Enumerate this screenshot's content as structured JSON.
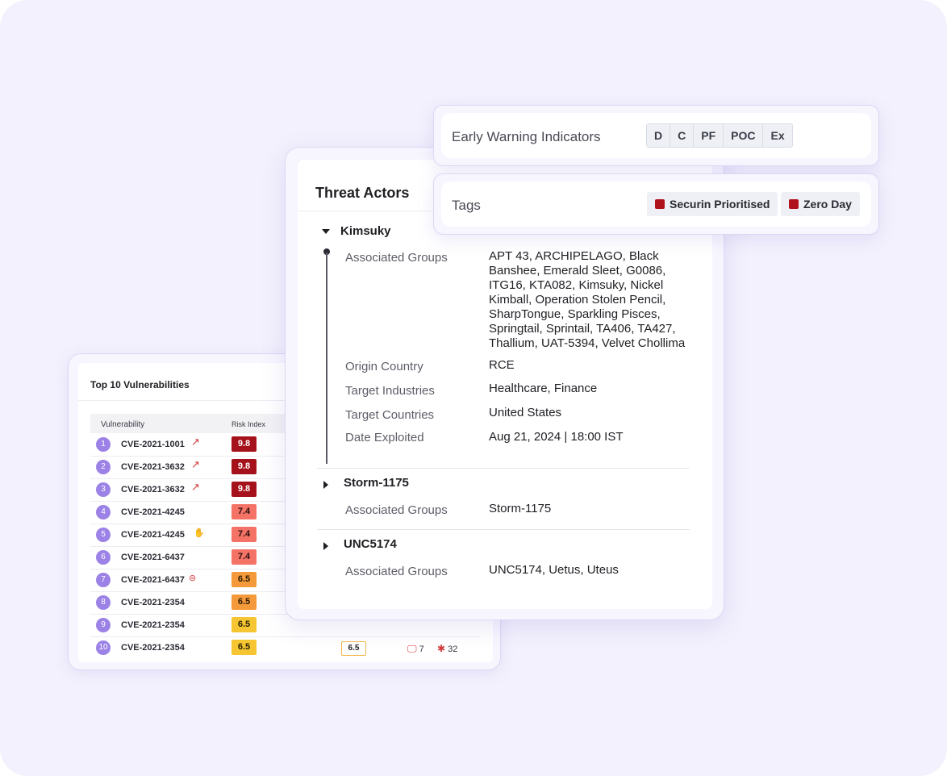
{
  "colors": {
    "background": "#f3f1fd",
    "accent_purple": "#9c82e6",
    "risk_critical": "#a6121b",
    "risk_high": "#f47366",
    "risk_medium": "#f59a3a",
    "risk_moderate": "#f5c532",
    "tag_red": "#b0121b"
  },
  "vulnerabilities": {
    "title": "Top 10 Vulnerabilities",
    "columns": {
      "vulnerability": "Vulnerability",
      "risk_index": "Risk Index"
    },
    "rows": [
      {
        "rank": "1",
        "cve": "CVE-2021-1001",
        "icon": "trending-up-icon",
        "risk": "9.8"
      },
      {
        "rank": "2",
        "cve": "CVE-2021-3632",
        "icon": "trending-up-icon",
        "risk": "9.8"
      },
      {
        "rank": "3",
        "cve": "CVE-2021-3632",
        "icon": "trending-up-icon",
        "risk": "9.8"
      },
      {
        "rank": "4",
        "cve": "CVE-2021-4245",
        "icon": "",
        "risk": "7.4"
      },
      {
        "rank": "5",
        "cve": "CVE-2021-4245",
        "icon": "ransomware-icon",
        "risk": "7.4"
      },
      {
        "rank": "6",
        "cve": "CVE-2021-6437",
        "icon": "",
        "risk": "7.4"
      },
      {
        "rank": "7",
        "cve": "CVE-2021-6437",
        "icon": "exploit-icon",
        "risk": "6.5"
      },
      {
        "rank": "8",
        "cve": "CVE-2021-2354",
        "icon": "",
        "risk": "6.5"
      },
      {
        "rank": "9",
        "cve": "CVE-2021-2354",
        "icon": "",
        "risk": "6.5"
      },
      {
        "rank": "10",
        "cve": "CVE-2021-2354",
        "icon": "",
        "risk": "6.5",
        "score": "6.5",
        "assets_icon": "monitor-icon",
        "assets": "7",
        "threats_icon": "bug-icon",
        "threats": "32"
      }
    ]
  },
  "threat_actors": {
    "title": "Threat Actors",
    "actors": [
      {
        "name": "Kimsuky",
        "expanded": true,
        "fields": {
          "associated_groups_label": "Associated Groups",
          "associated_groups": [
            "APT 43, ARCHIPELAGO, Black",
            "Banshee, Emerald Sleet, G0086,",
            "ITG16, KTA082, Kimsuky, Nickel",
            "Kimball, Operation Stolen Pencil,",
            "SharpTongue, Sparkling Pisces,",
            "Springtail, Sprintail, TA406, TA427,",
            "Thallium, UAT-5394, Velvet Chollima"
          ],
          "origin_country_label": "Origin Country",
          "origin_country": "RCE",
          "target_industries_label": "Target Industries",
          "target_industries": "Healthcare, Finance",
          "target_countries_label": "Target Countries",
          "target_countries": "United States",
          "date_exploited_label": "Date Exploited",
          "date_exploited": "Aug 21, 2024 | 18:00 IST"
        }
      },
      {
        "name": "Storm-1175",
        "expanded": false,
        "associated_groups_label": "Associated Groups",
        "associated_groups": "Storm-1175"
      },
      {
        "name": "UNC5174",
        "expanded": false,
        "associated_groups_label": "Associated Groups",
        "associated_groups": "UNC5174, Uetus, Uteus"
      }
    ]
  },
  "early_warning": {
    "label": "Early Warning Indicators",
    "indicators": [
      "D",
      "C",
      "PF",
      "POC",
      "Ex"
    ]
  },
  "tags": {
    "label": "Tags",
    "items": [
      "Securin Prioritised",
      "Zero Day"
    ]
  }
}
